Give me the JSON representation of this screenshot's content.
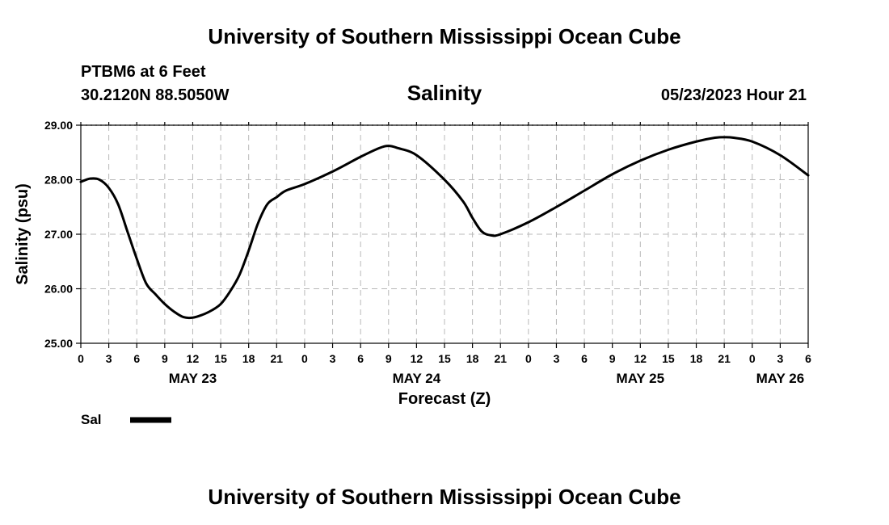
{
  "header": {
    "title": "University of Southern Mississippi Ocean Cube",
    "station": "PTBM6 at 6 Feet",
    "location": "30.2120N  88.5050W",
    "datetime": "05/23/2023 Hour 21",
    "footer_title": "University of Southern Mississippi Ocean Cube"
  },
  "legend": {
    "label": "Sal",
    "color": "#000000"
  },
  "chart_data": {
    "type": "line",
    "title": "Salinity",
    "xlabel": "Forecast (Z)",
    "ylabel": "Salinity (psu)",
    "ylim": [
      25.0,
      29.0
    ],
    "xlim": [
      "2023-05-23 00Z",
      "2023-05-26 06Z"
    ],
    "y_ticks": [
      "25.00",
      "26.00",
      "27.00",
      "28.00",
      "29.00"
    ],
    "x_hour_ticks": [
      "0",
      "3",
      "6",
      "9",
      "12",
      "15",
      "18",
      "21",
      "0",
      "3",
      "6",
      "9",
      "12",
      "15",
      "18",
      "21",
      "0",
      "3",
      "6",
      "9",
      "12",
      "15",
      "18",
      "21",
      "0",
      "3",
      "6"
    ],
    "x_day_labels": [
      {
        "label": "MAY 23",
        "time": "2023-05-23 12Z"
      },
      {
        "label": "MAY 24",
        "time": "2023-05-24 12Z"
      },
      {
        "label": "MAY 25",
        "time": "2023-05-25 12Z"
      },
      {
        "label": "MAY 26",
        "time": "2023-05-26 03Z"
      }
    ],
    "grid": true,
    "legend_position": "bottom-left",
    "series": [
      {
        "name": "Sal",
        "color": "#000000",
        "x": [
          "2023-05-23 00Z",
          "2023-05-23 01Z",
          "2023-05-23 02Z",
          "2023-05-23 03Z",
          "2023-05-23 04Z",
          "2023-05-23 05Z",
          "2023-05-23 06Z",
          "2023-05-23 07Z",
          "2023-05-23 08Z",
          "2023-05-23 09Z",
          "2023-05-23 10Z",
          "2023-05-23 11Z",
          "2023-05-23 12Z",
          "2023-05-23 13Z",
          "2023-05-23 14Z",
          "2023-05-23 15Z",
          "2023-05-23 16Z",
          "2023-05-23 17Z",
          "2023-05-23 18Z",
          "2023-05-23 19Z",
          "2023-05-23 20Z",
          "2023-05-23 21Z",
          "2023-05-23 22Z",
          "2023-05-24 00Z",
          "2023-05-24 03Z",
          "2023-05-24 06Z",
          "2023-05-24 08Z",
          "2023-05-24 09Z",
          "2023-05-24 10Z",
          "2023-05-24 12Z",
          "2023-05-24 15Z",
          "2023-05-24 17Z",
          "2023-05-24 18Z",
          "2023-05-24 19Z",
          "2023-05-24 20Z",
          "2023-05-24 21Z",
          "2023-05-25 00Z",
          "2023-05-25 03Z",
          "2023-05-25 06Z",
          "2023-05-25 09Z",
          "2023-05-25 12Z",
          "2023-05-25 15Z",
          "2023-05-25 18Z",
          "2023-05-25 20Z",
          "2023-05-25 21Z",
          "2023-05-25 22Z",
          "2023-05-26 00Z",
          "2023-05-26 03Z",
          "2023-05-26 06Z"
        ],
        "values": [
          27.96,
          28.02,
          28.0,
          27.85,
          27.55,
          27.05,
          26.55,
          26.1,
          25.9,
          25.72,
          25.58,
          25.48,
          25.47,
          25.52,
          25.6,
          25.72,
          25.95,
          26.25,
          26.7,
          27.2,
          27.55,
          27.68,
          27.8,
          27.92,
          28.15,
          28.42,
          28.58,
          28.62,
          28.58,
          28.45,
          28.0,
          27.6,
          27.3,
          27.05,
          26.98,
          27.0,
          27.22,
          27.5,
          27.8,
          28.1,
          28.35,
          28.55,
          28.7,
          28.77,
          28.78,
          28.77,
          28.7,
          28.45,
          28.08
        ]
      }
    ]
  }
}
